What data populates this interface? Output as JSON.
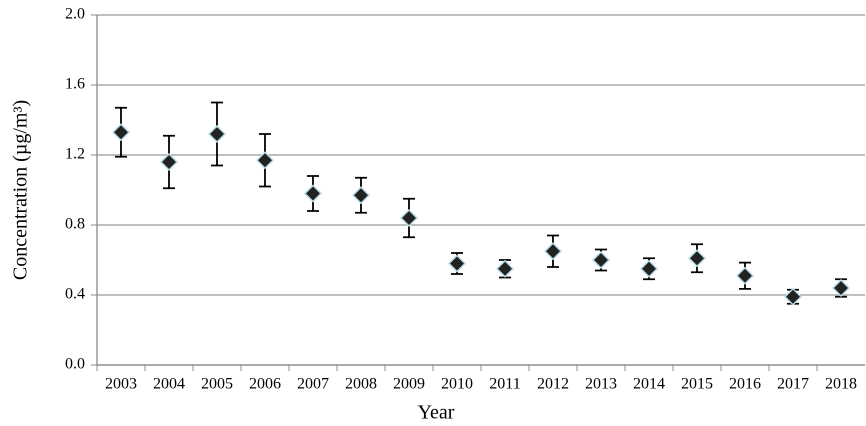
{
  "chart_data": {
    "type": "errorbar",
    "x_label": "Year",
    "y_label": "Concentration (µg/m³)",
    "categories": [
      "2003",
      "2004",
      "2005",
      "2006",
      "2007",
      "2008",
      "2009",
      "2010",
      "2011",
      "2012",
      "2013",
      "2014",
      "2015",
      "2016",
      "2017",
      "2018"
    ],
    "values": [
      1.33,
      1.16,
      1.32,
      1.17,
      0.98,
      0.97,
      0.84,
      0.58,
      0.55,
      0.65,
      0.6,
      0.55,
      0.61,
      0.51,
      0.39,
      0.44
    ],
    "errors": [
      0.14,
      0.15,
      0.18,
      0.15,
      0.1,
      0.1,
      0.11,
      0.06,
      0.05,
      0.09,
      0.06,
      0.06,
      0.08,
      0.075,
      0.04,
      0.05
    ],
    "color": "#222222",
    "marker_edge_color": "#b8dde8",
    "ylim": [
      0,
      2.0
    ],
    "yticks": [
      {
        "value": 0,
        "label": "0.0"
      },
      {
        "value": 0.4,
        "label": "0.4"
      },
      {
        "value": 0.8,
        "label": "0.8"
      },
      {
        "value": 1.2,
        "label": "1.2"
      },
      {
        "value": 1.6,
        "label": "1.6"
      },
      {
        "value": 2.0,
        "label": "2.0"
      }
    ],
    "grid": true
  }
}
